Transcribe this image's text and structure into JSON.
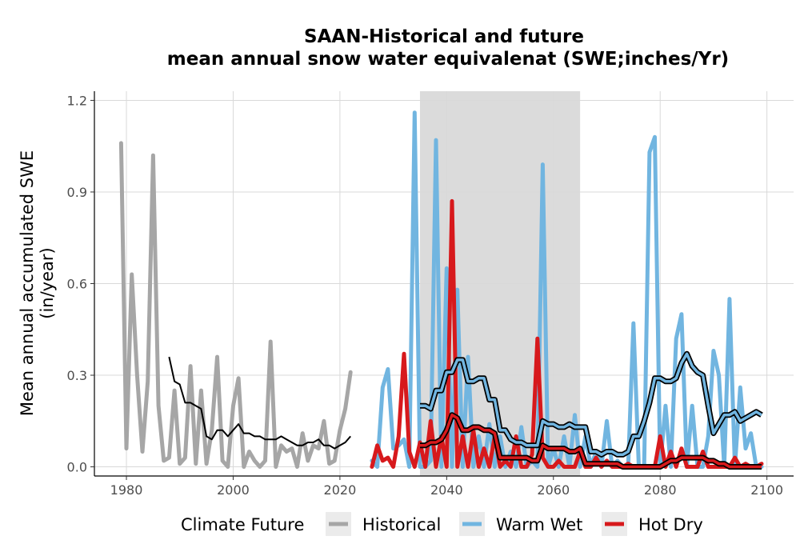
{
  "chart_data": {
    "type": "line",
    "title": "SAAN-Historical and future",
    "subtitle": "mean annual snow water equivalenat (SWE;inches/Yr)",
    "xlabel": "",
    "ylabel_line1": "Mean annual accumulated SWE",
    "ylabel_line2": "(in/year)",
    "xlim": [
      1974,
      2105
    ],
    "ylim": [
      -0.03,
      1.23
    ],
    "x_ticks": [
      1980,
      2000,
      2020,
      2040,
      2060,
      2080,
      2100
    ],
    "x_tick_labels": [
      "1980",
      "2000",
      "2020",
      "2040",
      "2060",
      "2080",
      "2100"
    ],
    "y_ticks": [
      0.0,
      0.3,
      0.6,
      0.9,
      1.2
    ],
    "y_tick_labels": [
      "0.0",
      "0.3",
      "0.6",
      "0.9",
      "1.2"
    ],
    "grid": true,
    "shaded_period": [
      2035,
      2065
    ],
    "legend_title": "Climate Future",
    "legend_position": "bottom",
    "colors": {
      "Historical": "#a6a6a6",
      "Warm Wet": "#71b5e0",
      "Hot Dry": "#d7191c",
      "shade": "#dbdbdb",
      "grid": "#d9d9d9",
      "smooth": "#000000"
    },
    "series": [
      {
        "name": "Historical",
        "x": [
          1979,
          1980,
          1981,
          1982,
          1983,
          1984,
          1985,
          1986,
          1987,
          1988,
          1989,
          1990,
          1991,
          1992,
          1993,
          1994,
          1995,
          1996,
          1997,
          1998,
          1999,
          2000,
          2001,
          2002,
          2003,
          2004,
          2005,
          2006,
          2007,
          2008,
          2009,
          2010,
          2011,
          2012,
          2013,
          2014,
          2015,
          2016,
          2017,
          2018,
          2019,
          2020,
          2021,
          2022
        ],
        "values": [
          1.06,
          0.06,
          0.63,
          0.3,
          0.05,
          0.28,
          1.02,
          0.2,
          0.02,
          0.03,
          0.25,
          0.01,
          0.03,
          0.33,
          0.01,
          0.25,
          0.01,
          0.12,
          0.36,
          0.02,
          0.0,
          0.2,
          0.29,
          0.0,
          0.05,
          0.02,
          0.0,
          0.02,
          0.41,
          0.0,
          0.07,
          0.05,
          0.06,
          0.0,
          0.11,
          0.02,
          0.07,
          0.06,
          0.15,
          0.01,
          0.02,
          0.12,
          0.19,
          0.31
        ]
      },
      {
        "name": "Historical smoothed",
        "x": [
          1988,
          1989,
          1990,
          1991,
          1992,
          1993,
          1994,
          1995,
          1996,
          1997,
          1998,
          1999,
          2000,
          2001,
          2002,
          2003,
          2004,
          2005,
          2006,
          2007,
          2008,
          2009,
          2010,
          2011,
          2012,
          2013,
          2014,
          2015,
          2016,
          2017,
          2018,
          2019,
          2020,
          2021,
          2022
        ],
        "values": [
          0.36,
          0.28,
          0.27,
          0.21,
          0.21,
          0.2,
          0.19,
          0.1,
          0.09,
          0.12,
          0.12,
          0.1,
          0.12,
          0.14,
          0.11,
          0.11,
          0.1,
          0.1,
          0.09,
          0.09,
          0.09,
          0.1,
          0.09,
          0.08,
          0.07,
          0.07,
          0.08,
          0.08,
          0.09,
          0.07,
          0.07,
          0.06,
          0.07,
          0.08,
          0.1
        ]
      },
      {
        "name": "Warm Wet",
        "x": [
          2026,
          2027,
          2028,
          2029,
          2030,
          2031,
          2032,
          2033,
          2034,
          2035,
          2036,
          2037,
          2038,
          2039,
          2040,
          2041,
          2042,
          2043,
          2044,
          2045,
          2046,
          2047,
          2048,
          2049,
          2050,
          2051,
          2052,
          2053,
          2054,
          2055,
          2056,
          2057,
          2058,
          2059,
          2060,
          2061,
          2062,
          2063,
          2064,
          2065,
          2066,
          2067,
          2068,
          2069,
          2070,
          2071,
          2072,
          2073,
          2074,
          2075,
          2076,
          2077,
          2078,
          2079,
          2080,
          2081,
          2082,
          2083,
          2084,
          2085,
          2086,
          2087,
          2088,
          2089,
          2090,
          2091,
          2092,
          2093,
          2094,
          2095,
          2096,
          2097,
          2098,
          2099
        ],
        "values": [
          0.02,
          0.0,
          0.26,
          0.32,
          0.06,
          0.07,
          0.09,
          0.0,
          1.16,
          0.0,
          0.0,
          0.02,
          1.07,
          0.0,
          0.65,
          0.0,
          0.58,
          0.0,
          0.36,
          0.0,
          0.1,
          0.0,
          0.14,
          0.0,
          0.1,
          0.0,
          0.05,
          0.0,
          0.13,
          0.0,
          0.02,
          0.0,
          0.99,
          0.0,
          0.06,
          0.0,
          0.1,
          0.0,
          0.17,
          0.0,
          0.1,
          0.0,
          0.05,
          0.0,
          0.15,
          0.0,
          0.02,
          0.0,
          0.0,
          0.47,
          0.0,
          0.0,
          1.03,
          1.08,
          0.0,
          0.2,
          0.0,
          0.42,
          0.5,
          0.0,
          0.2,
          0.0,
          0.0,
          0.1,
          0.38,
          0.3,
          0.0,
          0.55,
          0.0,
          0.26,
          0.06,
          0.11,
          0.0,
          0.0
        ]
      },
      {
        "name": "Warm Wet smoothed",
        "x": [
          2035,
          2036,
          2037,
          2038,
          2039,
          2040,
          2041,
          2042,
          2043,
          2044,
          2045,
          2046,
          2047,
          2048,
          2049,
          2050,
          2051,
          2052,
          2053,
          2054,
          2055,
          2056,
          2057,
          2058,
          2059,
          2060,
          2061,
          2062,
          2063,
          2064,
          2065,
          2066,
          2067,
          2068,
          2069,
          2070,
          2071,
          2072,
          2073,
          2074,
          2075,
          2076,
          2077,
          2078,
          2079,
          2080,
          2081,
          2082,
          2083,
          2084,
          2085,
          2086,
          2087,
          2088,
          2089,
          2090,
          2091,
          2092,
          2093,
          2094,
          2095,
          2096,
          2097,
          2098,
          2099
        ],
        "values": [
          0.2,
          0.2,
          0.19,
          0.25,
          0.25,
          0.31,
          0.31,
          0.35,
          0.35,
          0.28,
          0.28,
          0.29,
          0.29,
          0.22,
          0.22,
          0.12,
          0.12,
          0.09,
          0.08,
          0.08,
          0.07,
          0.07,
          0.07,
          0.15,
          0.14,
          0.14,
          0.13,
          0.13,
          0.14,
          0.13,
          0.13,
          0.13,
          0.05,
          0.05,
          0.04,
          0.05,
          0.05,
          0.04,
          0.04,
          0.05,
          0.1,
          0.1,
          0.15,
          0.21,
          0.29,
          0.29,
          0.28,
          0.28,
          0.29,
          0.34,
          0.37,
          0.33,
          0.31,
          0.3,
          0.2,
          0.11,
          0.14,
          0.17,
          0.17,
          0.18,
          0.15,
          0.16,
          0.17,
          0.18,
          0.17
        ]
      },
      {
        "name": "Hot Dry",
        "x": [
          2026,
          2027,
          2028,
          2029,
          2030,
          2031,
          2032,
          2033,
          2034,
          2035,
          2036,
          2037,
          2038,
          2039,
          2040,
          2041,
          2042,
          2043,
          2044,
          2045,
          2046,
          2047,
          2048,
          2049,
          2050,
          2051,
          2052,
          2053,
          2054,
          2055,
          2056,
          2057,
          2058,
          2059,
          2060,
          2061,
          2062,
          2063,
          2064,
          2065,
          2066,
          2067,
          2068,
          2069,
          2070,
          2071,
          2072,
          2073,
          2074,
          2075,
          2076,
          2077,
          2078,
          2079,
          2080,
          2081,
          2082,
          2083,
          2084,
          2085,
          2086,
          2087,
          2088,
          2089,
          2090,
          2091,
          2092,
          2093,
          2094,
          2095,
          2096,
          2097,
          2098,
          2099
        ],
        "values": [
          0.0,
          0.07,
          0.02,
          0.03,
          0.0,
          0.1,
          0.37,
          0.05,
          0.0,
          0.08,
          0.0,
          0.15,
          0.0,
          0.1,
          0.0,
          0.87,
          0.0,
          0.1,
          0.0,
          0.12,
          0.0,
          0.06,
          0.0,
          0.1,
          0.0,
          0.02,
          0.0,
          0.1,
          0.0,
          0.0,
          0.04,
          0.42,
          0.03,
          0.0,
          0.0,
          0.02,
          0.0,
          0.0,
          0.0,
          0.05,
          0.0,
          0.0,
          0.03,
          0.0,
          0.02,
          0.0,
          0.0,
          0.0,
          0.01,
          0.0,
          0.0,
          0.0,
          0.0,
          0.0,
          0.1,
          0.0,
          0.05,
          0.0,
          0.06,
          0.0,
          0.0,
          0.0,
          0.05,
          0.0,
          0.0,
          0.0,
          0.0,
          0.0,
          0.03,
          0.0,
          0.01,
          0.0,
          0.0,
          0.01
        ]
      },
      {
        "name": "Hot Dry smoothed",
        "x": [
          2035,
          2036,
          2037,
          2038,
          2039,
          2040,
          2041,
          2042,
          2043,
          2044,
          2045,
          2046,
          2047,
          2048,
          2049,
          2050,
          2051,
          2052,
          2053,
          2054,
          2055,
          2056,
          2057,
          2058,
          2059,
          2060,
          2061,
          2062,
          2063,
          2064,
          2065,
          2066,
          2067,
          2068,
          2069,
          2070,
          2071,
          2072,
          2073,
          2074,
          2075,
          2076,
          2077,
          2078,
          2079,
          2080,
          2081,
          2082,
          2083,
          2084,
          2085,
          2086,
          2087,
          2088,
          2089,
          2090,
          2091,
          2092,
          2093,
          2094,
          2095,
          2096,
          2097,
          2098,
          2099
        ],
        "values": [
          0.07,
          0.07,
          0.08,
          0.08,
          0.09,
          0.12,
          0.17,
          0.16,
          0.12,
          0.12,
          0.13,
          0.13,
          0.12,
          0.12,
          0.11,
          0.03,
          0.03,
          0.03,
          0.03,
          0.03,
          0.03,
          0.02,
          0.02,
          0.07,
          0.06,
          0.06,
          0.06,
          0.06,
          0.05,
          0.05,
          0.06,
          0.01,
          0.01,
          0.01,
          0.01,
          0.01,
          0.01,
          0.01,
          0.0,
          0.0,
          0.0,
          0.0,
          0.0,
          0.0,
          0.0,
          0.0,
          0.01,
          0.02,
          0.02,
          0.03,
          0.03,
          0.03,
          0.03,
          0.03,
          0.02,
          0.02,
          0.01,
          0.01,
          0.0,
          0.0,
          0.0,
          0.0,
          0.0,
          0.0,
          0.0
        ]
      }
    ]
  }
}
